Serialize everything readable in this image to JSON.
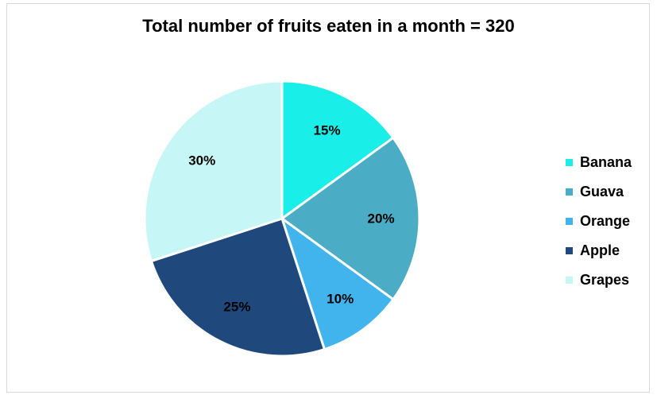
{
  "chart_data": {
    "type": "pie",
    "title": "Total number of fruits eaten in a month = 320",
    "categories": [
      "Banana",
      "Guava",
      "Orange",
      "Apple",
      "Grapes"
    ],
    "values": [
      15,
      20,
      10,
      25,
      30
    ],
    "labels": [
      "15%",
      "20%",
      "10%",
      "25%",
      "30%"
    ],
    "colors": [
      "#1aeee9",
      "#4bacc6",
      "#41b4ee",
      "#1f497d",
      "#c7f6f7"
    ],
    "legend_position": "right",
    "start_angle": "12 o'clock, clockwise"
  }
}
